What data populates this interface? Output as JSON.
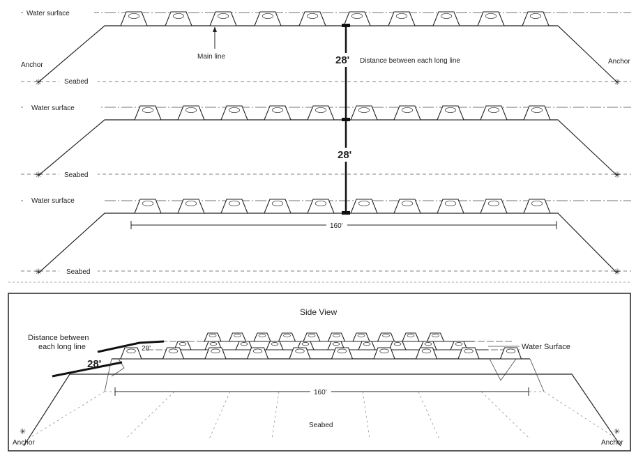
{
  "top_view": {
    "water_surface_label": "Water surface",
    "seabed_label": "Seabed",
    "anchor_label": "Anchor",
    "main_line_label": "Main line",
    "spacing_value": "28'",
    "spacing_label": "Distance between each long line",
    "length_value": "160'",
    "buoys_per_line": 10
  },
  "side_view": {
    "title": "Side View",
    "spacing_label_line1": "Distance between",
    "spacing_label_line2": "each long line",
    "spacing_value": "28'",
    "water_surface_label": "Water Surface",
    "length_value": "160'",
    "seabed_label": "Seabed",
    "anchor_label": "Anchor",
    "buoys_per_row": 10,
    "rows": 3
  },
  "colors": {
    "line": "#222222",
    "dashed": "#555555"
  }
}
